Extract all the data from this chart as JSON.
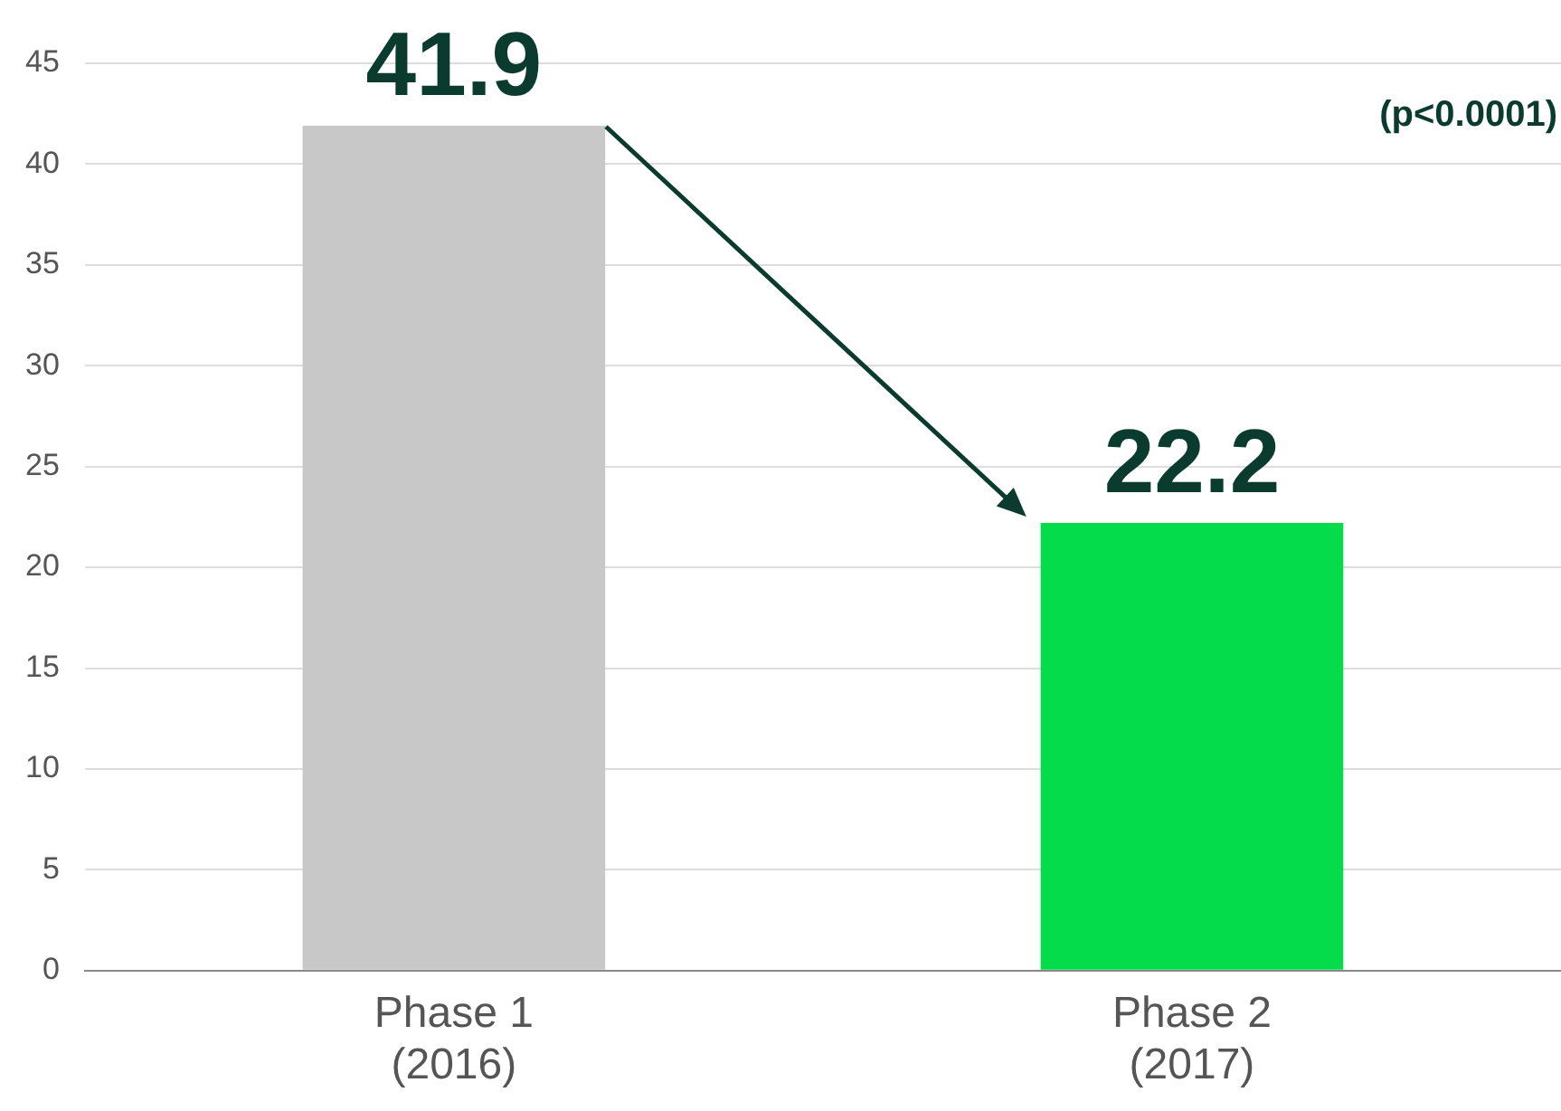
{
  "chart_data": {
    "type": "bar",
    "categories": [
      "Phase 1\n(2016)",
      "Phase 2\n(2017)"
    ],
    "values": [
      41.9,
      22.2
    ],
    "colors": [
      "#c8c8c8",
      "#05dc4c"
    ],
    "ylim": [
      0,
      45
    ],
    "yticks": [
      0,
      5,
      10,
      15,
      20,
      25,
      30,
      35,
      40,
      45
    ],
    "grid": "y",
    "legend": false,
    "data_labels": true,
    "annotations": [
      "(p<0.0001)"
    ]
  }
}
